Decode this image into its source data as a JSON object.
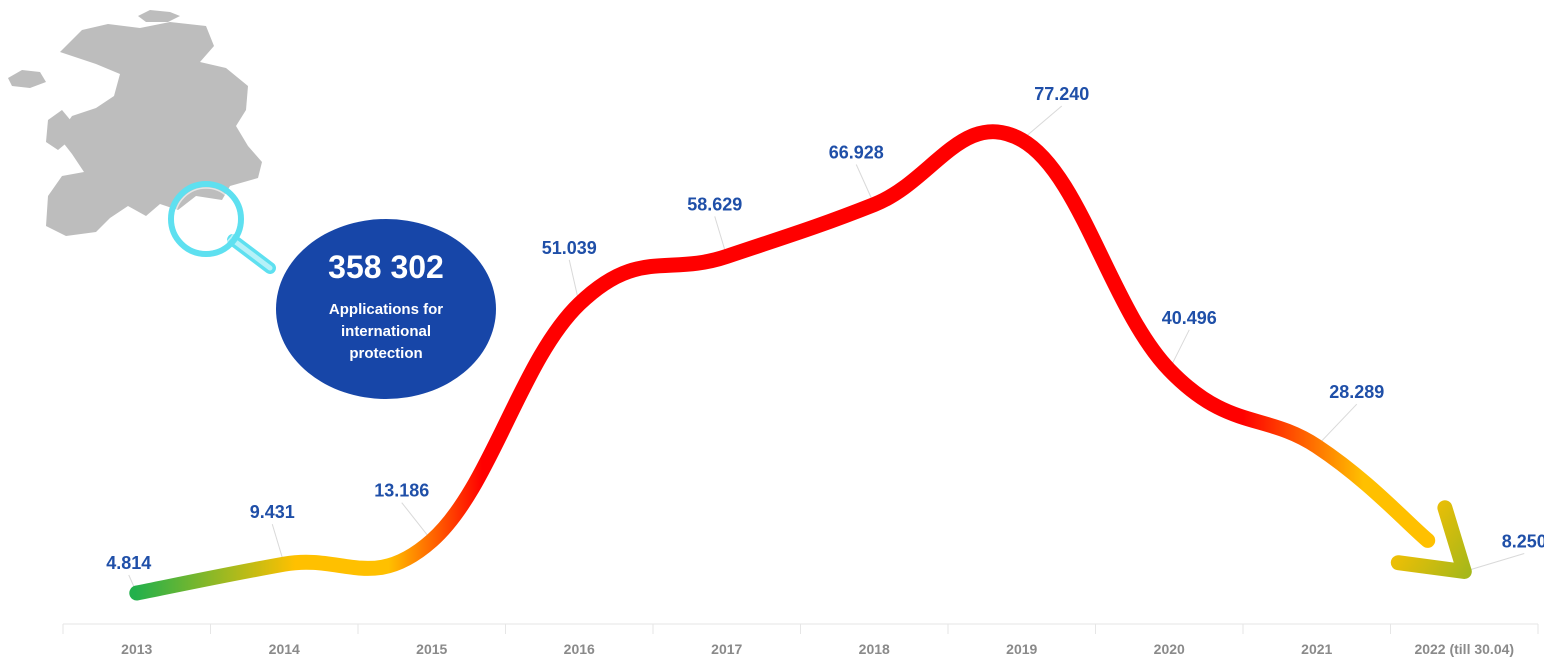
{
  "chart_data": {
    "type": "line",
    "categories": [
      "2013",
      "2014",
      "2015",
      "2016",
      "2017",
      "2018",
      "2019",
      "2020",
      "2021",
      "2022 (till 30.04)"
    ],
    "values": [
      4814,
      9431,
      13186,
      51039,
      58629,
      66928,
      77240,
      40496,
      28289,
      8250
    ],
    "value_labels": [
      "4.814",
      "9.431",
      "13.186",
      "51.039",
      "58.629",
      "66.928",
      "77.240",
      "40.496",
      "28.289",
      "8.250"
    ],
    "ylim": [
      4814,
      77240
    ],
    "grid": false,
    "legend": "none",
    "line_colors": {
      "low": "#22b04b",
      "mid": "#ffc000",
      "high": "#ff0000"
    },
    "label_color": "#1f4fa8",
    "axis_label_color": "#8a8a8a"
  },
  "callout": {
    "total": "358 302",
    "caption_lines": [
      "Applications for",
      "international",
      "protection"
    ],
    "bubble_color": "#1746a8"
  },
  "map": {
    "icon": "europe-map-icon",
    "magnifier_icon": "magnifier-icon",
    "map_color": "#bdbdbd",
    "magnifier_color": "#5ee0f0"
  }
}
